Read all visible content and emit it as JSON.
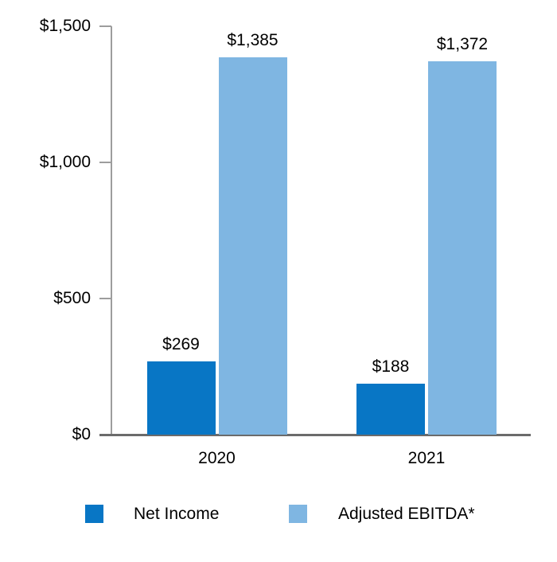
{
  "chart_data": {
    "type": "bar",
    "title": "",
    "categories": [
      "2020",
      "2021"
    ],
    "series": [
      {
        "name": "Net Income",
        "color": "#0876c5",
        "values": [
          269,
          188
        ],
        "value_labels": [
          "$269",
          "$188"
        ]
      },
      {
        "name": "Adjusted EBITDA*",
        "color": "#7fb6e2",
        "values": [
          1385,
          1372
        ],
        "value_labels": [
          "$1,385",
          "$1,372"
        ]
      }
    ],
    "y_axis": {
      "min": 0,
      "max": 1500,
      "ticks": [
        {
          "value": 0,
          "label": "$0"
        },
        {
          "value": 500,
          "label": "$500"
        },
        {
          "value": 1000,
          "label": "$1,000"
        },
        {
          "value": 1500,
          "label": "$1,500"
        }
      ]
    },
    "grid": false,
    "legend_position": "bottom",
    "axis_line_color": "#9d9d9d",
    "baseline_color": "#6b6b6b",
    "text_color": "#000000",
    "background_color": "#ffffff"
  }
}
